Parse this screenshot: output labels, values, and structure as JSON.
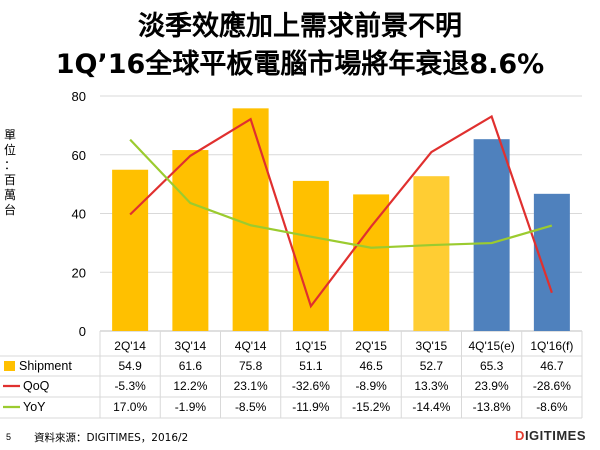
{
  "header": {
    "title_line1": "淡季效應加上需求前景不明",
    "title_line2": "1Q’16全球平板電腦市場將年衰退8.6%"
  },
  "footer": {
    "page_number": "5",
    "source": "資料來源：DIGITIMES，2016/2",
    "brand_mark": "D",
    "brand_text": "IGITIMES"
  },
  "chart_data": {
    "type": "bar",
    "ylabel": "單位：百萬台",
    "ylim": [
      0,
      80
    ],
    "yticks": [
      "0",
      "20",
      "40",
      "60",
      "80"
    ],
    "categories": [
      "2Q'14",
      "3Q'14",
      "4Q'14",
      "1Q'15",
      "2Q'15",
      "3Q'15",
      "4Q'15(e)",
      "1Q'16(f)"
    ],
    "grid": true,
    "legend": "table-bottom",
    "bar_colors": [
      "#FFC000",
      "#FFC000",
      "#FFC000",
      "#FFC000",
      "#FFC000",
      "#FFCD33",
      "#4F81BD",
      "#4F81BD"
    ],
    "series": [
      {
        "name": "Shipment",
        "kind": "bar",
        "color": "#FFC000",
        "values": [
          54.9,
          61.6,
          75.8,
          51.1,
          46.5,
          52.7,
          65.3,
          46.7
        ],
        "labels": [
          "54.9",
          "61.6",
          "75.8",
          "51.1",
          "46.5",
          "52.7",
          "65.3",
          "46.7"
        ]
      },
      {
        "name": "QoQ",
        "kind": "line",
        "color": "#E0302F",
        "values": [
          -5.3,
          12.2,
          23.1,
          -32.6,
          -8.9,
          13.3,
          23.9,
          -28.6
        ],
        "labels": [
          "-5.3%",
          "12.2%",
          "23.1%",
          "-32.6%",
          "-8.9%",
          "13.3%",
          "23.9%",
          "-28.6%"
        ],
        "secondary_range": [
          -40,
          30
        ]
      },
      {
        "name": "YoY",
        "kind": "line",
        "color": "#9BCB2F",
        "values": [
          17.0,
          -1.9,
          -8.5,
          -11.9,
          -15.2,
          -14.4,
          -13.8,
          -8.6
        ],
        "labels": [
          "17.0%",
          "-1.9%",
          "-8.5%",
          "-11.9%",
          "-15.2%",
          "-14.4%",
          "-13.8%",
          "-8.6%"
        ],
        "secondary_range": [
          -40,
          30
        ]
      }
    ]
  }
}
